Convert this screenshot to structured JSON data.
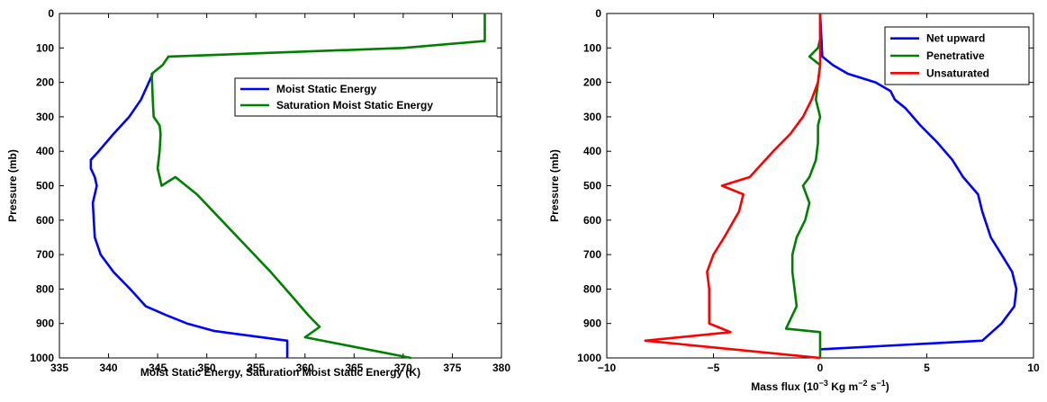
{
  "chart_data": [
    {
      "type": "line",
      "xlabel": "Moist Static Energy, Saturation Moist Static Energy (K)",
      "ylabel": "Pressure (mb)",
      "xlim": [
        335,
        380
      ],
      "ylim": [
        0,
        1000
      ],
      "y_reversed": true,
      "xticks": [
        "335",
        "340",
        "345",
        "350",
        "355",
        "360",
        "365",
        "370",
        "375",
        "380"
      ],
      "yticks": [
        "0",
        "100",
        "200",
        "300",
        "400",
        "500",
        "600",
        "700",
        "800",
        "900",
        "1000"
      ],
      "legend": "top-right",
      "series": [
        {
          "name": "Moist Static Energy",
          "color": "#0000ff",
          "x": [
            358.2,
            358.2,
            350.8,
            348.0,
            345.8,
            343.8,
            342.2,
            340.5,
            339.2,
            338.6,
            338.5,
            338.4,
            338.8,
            338.6,
            338.2,
            338.2,
            339.0,
            340.5,
            342.1,
            343.3,
            344.1,
            344.5
          ],
          "y": [
            1000,
            950,
            922,
            900,
            875,
            850,
            800,
            750,
            700,
            650,
            600,
            550,
            500,
            475,
            450,
            425,
            400,
            350,
            300,
            250,
            200,
            175
          ]
        },
        {
          "name": "Saturation Moist Static Energy",
          "color": "#008000",
          "x": [
            370.8,
            360.0,
            361.5,
            360.3,
            358.8,
            356.5,
            354.0,
            351.5,
            349.0,
            346.8,
            345.4,
            345.0,
            345.2,
            345.3,
            345.2,
            344.6,
            344.5,
            344.4,
            345.5,
            346.1,
            370.0,
            378.3,
            378.3
          ],
          "y": [
            1000,
            940,
            910,
            875,
            825,
            750,
            675,
            600,
            525,
            475,
            500,
            450,
            400,
            350,
            325,
            300,
            250,
            175,
            150,
            125,
            100,
            80,
            0
          ]
        }
      ]
    },
    {
      "type": "line",
      "xlabel_prefix": "Mass flux (10",
      "xlabel_exp1": "−3",
      "xlabel_mid": " Kg m",
      "xlabel_exp2": "−2",
      "xlabel_mid2": " s",
      "xlabel_exp3": "−1",
      "xlabel_suffix": ")",
      "ylabel": "Pressure (mb)",
      "xlim": [
        -10,
        10
      ],
      "ylim": [
        0,
        1000
      ],
      "y_reversed": true,
      "xticks": [
        "−10",
        "−5",
        "0",
        "5",
        "10"
      ],
      "yticks": [
        "0",
        "100",
        "200",
        "300",
        "400",
        "500",
        "600",
        "700",
        "800",
        "900",
        "1000"
      ],
      "legend": "top-right",
      "series": [
        {
          "name": "Net upward",
          "color": "#0000ff",
          "x": [
            0.0,
            7.6,
            8.5,
            9.1,
            9.2,
            9.0,
            8.5,
            8.0,
            7.6,
            7.4,
            6.7,
            6.2,
            5.5,
            4.7,
            4.0,
            3.5,
            3.3,
            2.6,
            1.3,
            0.6,
            0.1,
            0.0
          ],
          "y": [
            975,
            950,
            900,
            850,
            800,
            750,
            700,
            650,
            575,
            525,
            475,
            425,
            375,
            325,
            275,
            250,
            225,
            200,
            175,
            150,
            125,
            0
          ]
        },
        {
          "name": "Penetrative",
          "color": "#008000",
          "x": [
            0.0,
            0.0,
            -1.6,
            -1.1,
            -1.2,
            -1.3,
            -1.3,
            -1.1,
            -0.7,
            -0.5,
            -0.8,
            -0.5,
            -0.2,
            -0.1,
            -0.1,
            0.0,
            -0.2,
            -0.1,
            0.0,
            -0.5,
            -0.1,
            0.0,
            0.0
          ],
          "y": [
            1000,
            925,
            915,
            850,
            800,
            750,
            700,
            650,
            600,
            550,
            500,
            475,
            425,
            375,
            325,
            300,
            250,
            200,
            150,
            125,
            100,
            75,
            0
          ]
        },
        {
          "name": "Unsaturated",
          "color": "#ff0000",
          "x": [
            0.0,
            -8.2,
            -4.2,
            -4.8,
            -5.2,
            -5.2,
            -5.2,
            -5.3,
            -5.0,
            -4.5,
            -3.8,
            -3.6,
            -4.6,
            -3.3,
            -2.2,
            -1.4,
            -0.8,
            -0.4,
            -0.1,
            0.0,
            0.0
          ],
          "y": [
            1000,
            950,
            925,
            910,
            900,
            850,
            800,
            750,
            700,
            650,
            575,
            525,
            500,
            475,
            400,
            350,
            300,
            250,
            200,
            150,
            0
          ]
        }
      ]
    }
  ]
}
